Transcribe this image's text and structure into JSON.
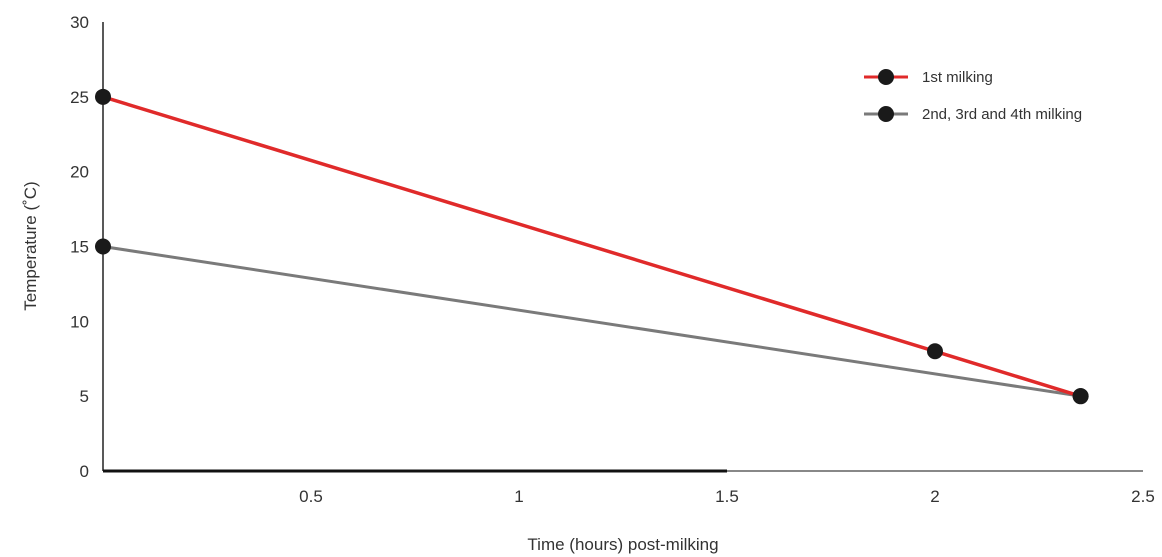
{
  "chart_data": {
    "type": "line",
    "title": "",
    "xlabel": "Time (hours) post-milking",
    "ylabel": "Temperature (˚C)",
    "xlim": [
      0,
      2.5
    ],
    "ylim": [
      0,
      30
    ],
    "x_ticks": [
      {
        "value": 0.5,
        "label": "0.5"
      },
      {
        "value": 1,
        "label": "1"
      },
      {
        "value": 1.5,
        "label": "1.5"
      },
      {
        "value": 2,
        "label": "2"
      },
      {
        "value": 2.5,
        "label": "2.5"
      }
    ],
    "y_ticks": [
      {
        "value": 0,
        "label": "0"
      },
      {
        "value": 5,
        "label": "5"
      },
      {
        "value": 10,
        "label": "10"
      },
      {
        "value": 15,
        "label": "15"
      },
      {
        "value": 20,
        "label": "20"
      },
      {
        "value": 25,
        "label": "25"
      },
      {
        "value": 30,
        "label": "30"
      }
    ],
    "grid": false,
    "legend_position": "top-right",
    "series": [
      {
        "name": "1st milking",
        "color": "#e02a2a",
        "points": [
          {
            "x": 0,
            "y": 25
          },
          {
            "x": 2,
            "y": 8
          },
          {
            "x": 2.35,
            "y": 5
          }
        ]
      },
      {
        "name": "2nd, 3rd and 4th milking",
        "color": "#7a7a7a",
        "points": [
          {
            "x": 0,
            "y": 15
          },
          {
            "x": 2.35,
            "y": 5
          }
        ]
      }
    ],
    "axis_colors": {
      "x_left": "#111111",
      "x_right": "#888888",
      "y": "#222222"
    },
    "marker_color": "#1a1a1a"
  }
}
